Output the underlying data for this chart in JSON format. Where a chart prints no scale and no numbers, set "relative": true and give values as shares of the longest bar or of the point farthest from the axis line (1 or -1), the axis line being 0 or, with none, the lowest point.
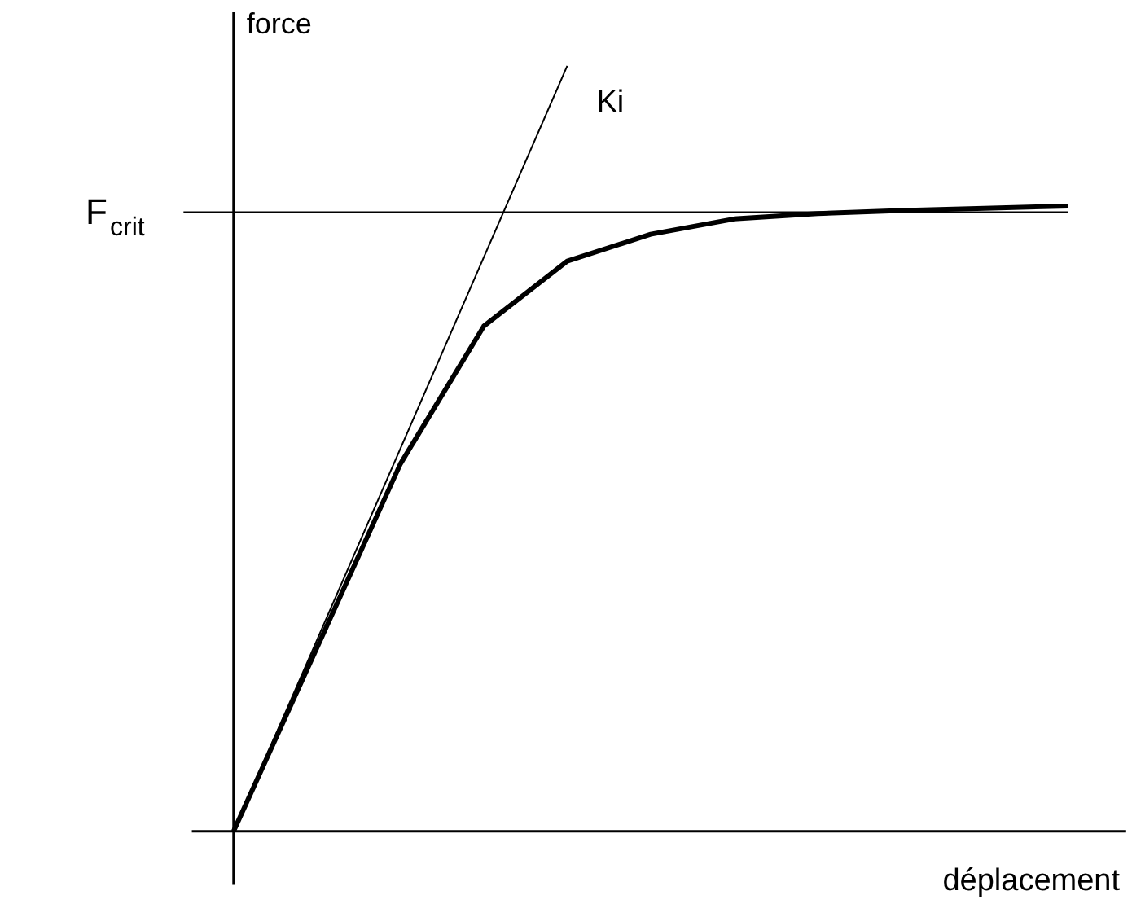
{
  "chart_data": {
    "type": "line",
    "relative": true,
    "xlabel": "déplacement",
    "ylabel": "force",
    "legend": false,
    "marker": "none",
    "line_style": "solid",
    "grid": false,
    "categories": [
      null,
      null,
      null,
      null,
      null,
      null,
      null,
      null,
      null,
      null,
      null
    ],
    "series": [
      {
        "color": "#000000",
        "values": [
          0,
          0.24,
          0.48,
          0.66,
          0.745,
          0.78,
          0.8,
          0.807,
          0.811,
          0.814,
          0.817
        ]
      },
      {
        "name": "Ki",
        "color": "#000000",
        "values": [
          0,
          0.25,
          0.5,
          0.75,
          1.0,
          null,
          null,
          null,
          null,
          null,
          null
        ]
      }
    ],
    "ref_lines": [
      {
        "axis": "y",
        "value": 0.809,
        "label": "F$_{crit}$",
        "color": "#000000"
      }
    ]
  }
}
